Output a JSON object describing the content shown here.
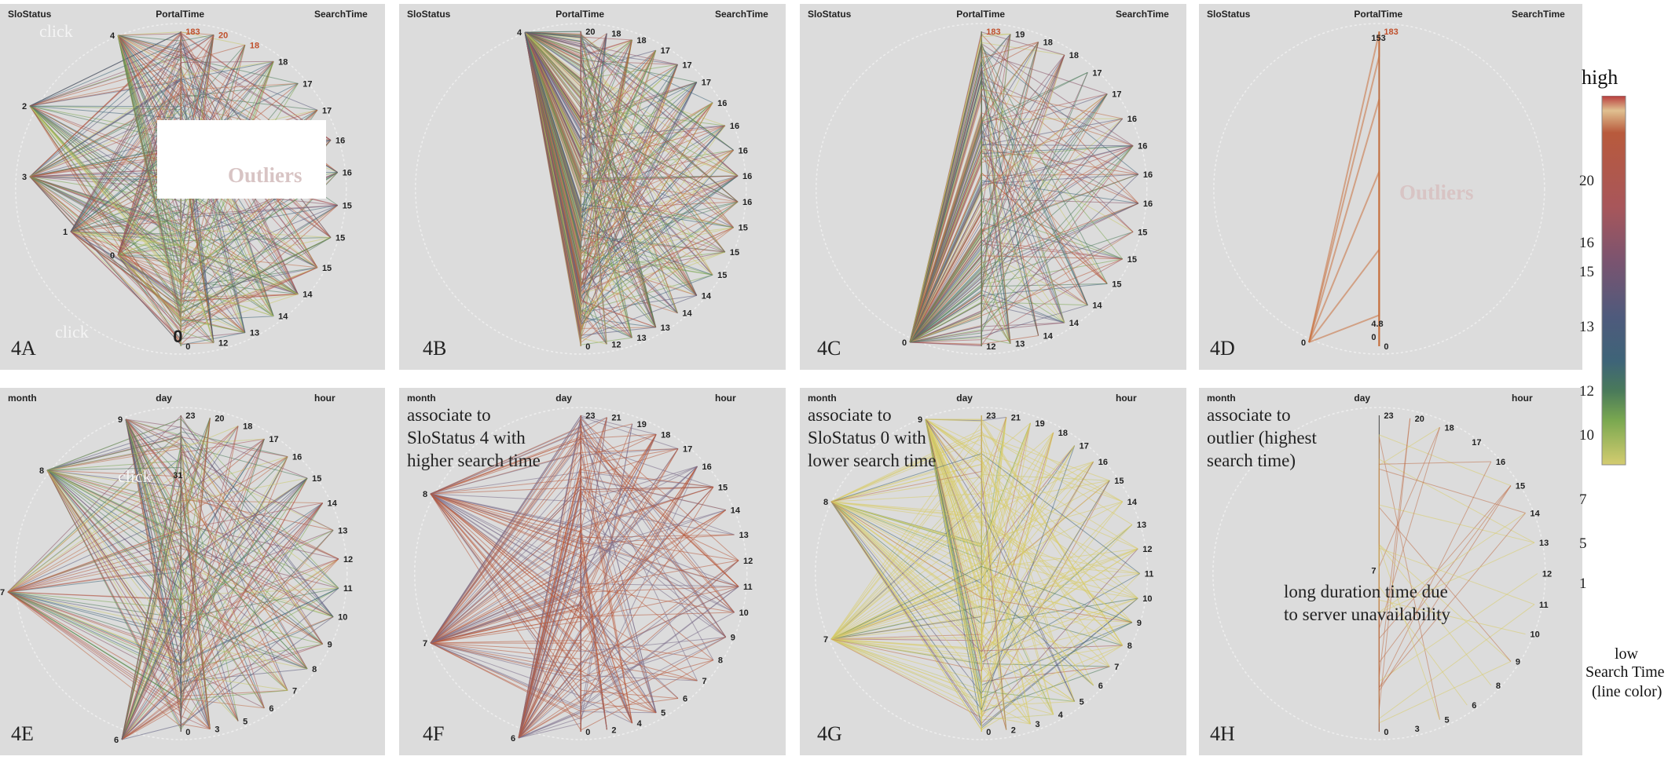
{
  "panels": [
    {
      "id": "4A",
      "label": "4A",
      "axes": [
        "SloStatus",
        "PortalTime",
        "SearchTime"
      ],
      "left_axis_values": [
        "4",
        "3",
        "2",
        "1",
        "0"
      ],
      "middle_axis_values": [
        "0"
      ],
      "right_axis_values": [
        "183",
        "20",
        "18",
        "18",
        "17",
        "17",
        "16",
        "16",
        "15",
        "15",
        "15",
        "14",
        "14",
        "13",
        "12",
        "0"
      ],
      "click_labels": [
        "click",
        "click"
      ],
      "outlier_label": "Outliers"
    },
    {
      "id": "4B",
      "label": "4B",
      "axes": [
        "SloStatus",
        "PortalTime",
        "SearchTime"
      ],
      "left_axis_values": [
        "4"
      ],
      "right_axis_values": [
        "20",
        "18",
        "18",
        "17",
        "17",
        "17",
        "16",
        "16",
        "16",
        "16",
        "16",
        "15",
        "15",
        "15",
        "14",
        "14",
        "13",
        "13",
        "12",
        "0"
      ]
    },
    {
      "id": "4C",
      "label": "4C",
      "axes": [
        "SloStatus",
        "PortalTime",
        "SearchTime"
      ],
      "left_axis_values": [
        "0"
      ],
      "right_axis_values": [
        "183",
        "19",
        "18",
        "18",
        "17",
        "17",
        "16",
        "16",
        "16",
        "16",
        "15",
        "15",
        "15",
        "14",
        "14",
        "14",
        "13",
        "12"
      ]
    },
    {
      "id": "4D",
      "label": "4D",
      "axes": [
        "SloStatus",
        "PortalTime",
        "SearchTime"
      ],
      "left_axis_values": [
        "0"
      ],
      "middle_axis_values": [
        "153",
        "4.8",
        "0"
      ],
      "right_axis_values": [
        "183",
        "0"
      ],
      "outlier_label": "Outliers"
    },
    {
      "id": "4E",
      "label": "4E",
      "axes": [
        "month",
        "day",
        "hour"
      ],
      "left_axis_values": [
        "9",
        "8",
        "7",
        "6"
      ],
      "middle_axis_values": [
        "31"
      ],
      "right_axis_values": [
        "23",
        "20",
        "18",
        "17",
        "16",
        "15",
        "14",
        "13",
        "12",
        "11",
        "10",
        "9",
        "8",
        "7",
        "6",
        "5",
        "3",
        "0"
      ],
      "click_labels": [
        "click"
      ]
    },
    {
      "id": "4F",
      "label": "4F",
      "axes": [
        "month",
        "day",
        "hour"
      ],
      "left_axis_values": [
        "8",
        "7",
        "6"
      ],
      "right_axis_values": [
        "23",
        "21",
        "19",
        "18",
        "17",
        "16",
        "15",
        "14",
        "13",
        "12",
        "11",
        "10",
        "9",
        "8",
        "7",
        "6",
        "5",
        "4",
        "2",
        "0"
      ],
      "annotation": "associate to\nSloStatus 4 with\nhigher search time"
    },
    {
      "id": "4G",
      "label": "4G",
      "axes": [
        "month",
        "day",
        "hour"
      ],
      "left_axis_values": [
        "9",
        "8",
        "7"
      ],
      "right_axis_values": [
        "23",
        "21",
        "19",
        "18",
        "17",
        "16",
        "15",
        "14",
        "13",
        "12",
        "11",
        "10",
        "9",
        "8",
        "7",
        "6",
        "5",
        "4",
        "3",
        "2",
        "0"
      ],
      "annotation": "associate to\nSloStatus 0 with\nlower search time"
    },
    {
      "id": "4H",
      "label": "4H",
      "axes": [
        "month",
        "day",
        "hour"
      ],
      "middle_axis_values": [
        "7"
      ],
      "right_axis_values": [
        "23",
        "20",
        "18",
        "17",
        "16",
        "15",
        "14",
        "13",
        "12",
        "11",
        "10",
        "9",
        "8",
        "6",
        "5",
        "3",
        "0"
      ],
      "annotation": "associate to\noutlier (highest\nsearch time)",
      "annotation2": "long duration time due\nto server unavailability"
    }
  ],
  "legend": {
    "top_label": "high",
    "bottom_label": "low",
    "title": "Search Time",
    "subtitle": "(line color)",
    "ticks": [
      "20",
      "16",
      "15",
      "13",
      "12",
      "10",
      "7",
      "5",
      "1"
    ],
    "colors": [
      "#c8a878",
      "#b85a3c",
      "#a8565a",
      "#8a5468",
      "#5a5a7c",
      "#3e6478",
      "#4a7a5a",
      "#7aa850",
      "#c8c868"
    ]
  },
  "chart_data": {
    "type": "parallel-coordinates-radial",
    "color_encoding": "Search Time (line color)",
    "panels": [
      "4A",
      "4B",
      "4C",
      "4D",
      "4E",
      "4F",
      "4G",
      "4H"
    ],
    "color_scale_ticks": [
      20,
      16,
      15,
      13,
      12,
      10,
      7,
      5,
      1
    ]
  }
}
